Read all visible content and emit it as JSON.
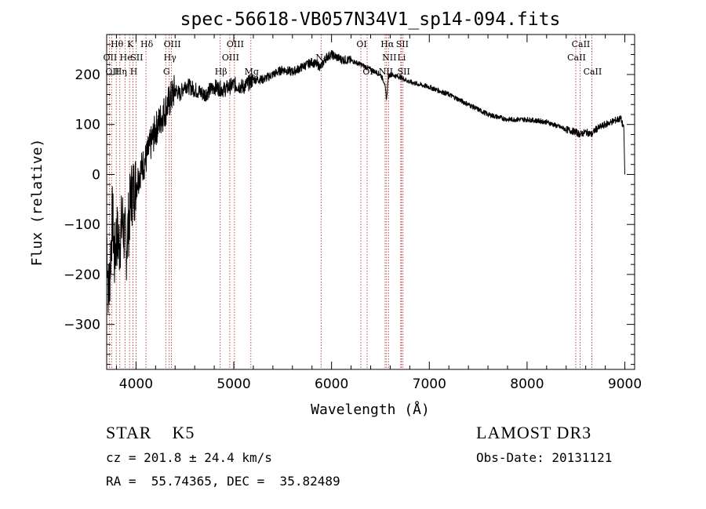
{
  "chart_data": {
    "type": "line",
    "title": "spec-56618-VB057N34V1_sp14-094.fits",
    "xlabel": "Wavelength (Å)",
    "ylabel": "Flux (relative)",
    "xlim": [
      3700,
      9100
    ],
    "ylim": [
      -390,
      280
    ],
    "x_ticks": [
      4000,
      5000,
      6000,
      7000,
      8000,
      9000
    ],
    "x_tick_labels": [
      "4000",
      "5000",
      "6000",
      "7000",
      "8000",
      "9000"
    ],
    "y_ticks": [
      -300,
      -200,
      -100,
      0,
      100,
      200
    ],
    "y_tick_labels": [
      "−300",
      "−200",
      "−100",
      "0",
      "100",
      "200"
    ],
    "series": [
      {
        "name": "flux",
        "x": [
          3700,
          3720,
          3740,
          3760,
          3780,
          3800,
          3830,
          3860,
          3900,
          3950,
          4000,
          4050,
          4100,
          4150,
          4200,
          4250,
          4300,
          4350,
          4400,
          4450,
          4500,
          4600,
          4700,
          4800,
          4900,
          5000,
          5100,
          5200,
          5300,
          5400,
          5500,
          5600,
          5700,
          5800,
          5890,
          5950,
          6000,
          6100,
          6200,
          6300,
          6400,
          6500,
          6540,
          6563,
          6580,
          6600,
          6700,
          6800,
          7000,
          7200,
          7400,
          7600,
          7800,
          8000,
          8200,
          8400,
          8498,
          8542,
          8600,
          8662,
          8700,
          8800,
          8900,
          8960,
          8990,
          9000
        ],
        "y": [
          -120,
          -250,
          -160,
          -80,
          -170,
          -120,
          -140,
          -90,
          -150,
          -40,
          -20,
          10,
          30,
          60,
          90,
          110,
          130,
          150,
          170,
          160,
          180,
          170,
          160,
          175,
          170,
          180,
          175,
          190,
          190,
          200,
          210,
          205,
          215,
          225,
          215,
          235,
          240,
          230,
          228,
          220,
          210,
          200,
          185,
          150,
          195,
          200,
          195,
          185,
          175,
          160,
          140,
          120,
          110,
          110,
          105,
          90,
          85,
          80,
          85,
          80,
          90,
          100,
          108,
          112,
          90,
          0
        ]
      }
    ],
    "line_markers": [
      {
        "w": 3727,
        "label": "OII",
        "row": 1
      },
      {
        "w": 3750,
        "label": "OII",
        "row": 2
      },
      {
        "w": 3798,
        "label": "Hθ",
        "row": 0
      },
      {
        "w": 3835,
        "label": "Hη",
        "row": 2
      },
      {
        "w": 3889,
        "label": "He",
        "row": 1
      },
      {
        "w": 3934,
        "label": "K",
        "row": 0
      },
      {
        "w": 3969,
        "label": "H",
        "row": 2
      },
      {
        "w": 4000,
        "label": "SII",
        "row": 1
      },
      {
        "w": 4102,
        "label": "Hδ",
        "row": 0
      },
      {
        "w": 4304,
        "label": "G",
        "row": 2
      },
      {
        "w": 4340,
        "label": "Hγ",
        "row": 1
      },
      {
        "w": 4363,
        "label": "OIII",
        "row": 0
      },
      {
        "w": 4861,
        "label": "Hβ",
        "row": 2
      },
      {
        "w": 4959,
        "label": "OIII",
        "row": 1
      },
      {
        "w": 5007,
        "label": "OIII",
        "row": 0
      },
      {
        "w": 5175,
        "label": "Mg",
        "row": 2
      },
      {
        "w": 5893,
        "label": "Na",
        "row": 1
      },
      {
        "w": 6300,
        "label": "OI",
        "row": 0
      },
      {
        "w": 6364,
        "label": "OI",
        "row": 2
      },
      {
        "w": 6548,
        "label": "NII",
        "row": 2
      },
      {
        "w": 6563,
        "label": "Hα",
        "row": 0
      },
      {
        "w": 6583,
        "label": "NII",
        "row": 1
      },
      {
        "w": 6708,
        "label": "Li",
        "row": 1
      },
      {
        "w": 6716,
        "label": "SII",
        "row": 0
      },
      {
        "w": 6731,
        "label": "SII",
        "row": 2
      },
      {
        "w": 8498,
        "label": "CaII",
        "row": 1
      },
      {
        "w": 8542,
        "label": "CaII",
        "row": 0
      },
      {
        "w": 8662,
        "label": "CaII",
        "row": 2
      }
    ]
  },
  "info": {
    "class_text": "STAR    K5",
    "survey_text": "LAMOST DR3",
    "cz_text": "cz = 201.8 ± 24.4 km/s",
    "obs_text": "Obs-Date: 20131121",
    "radec_text": "RA =  55.74365, DEC =  35.82489"
  }
}
